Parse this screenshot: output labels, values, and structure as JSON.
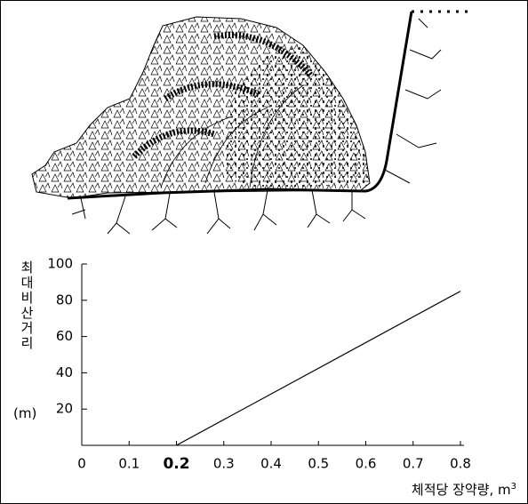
{
  "chart_data": {
    "type": "line",
    "y_label": "최대비산거리",
    "y_unit": "(m)",
    "x_label": "체적당 장약량, m",
    "x_label_sup": "3",
    "x": [
      0.2,
      0.8
    ],
    "series": [
      {
        "color": "#000000",
        "values": [
          0,
          85
        ]
      }
    ],
    "xlim": [
      0,
      0.8
    ],
    "xticks": [
      0,
      0.1,
      0.2,
      0.3,
      0.4,
      0.5,
      0.6,
      0.7,
      0.8
    ],
    "ylim": [
      0,
      100
    ],
    "yticks": [
      20,
      40,
      60,
      80,
      100
    ],
    "grid": false
  }
}
